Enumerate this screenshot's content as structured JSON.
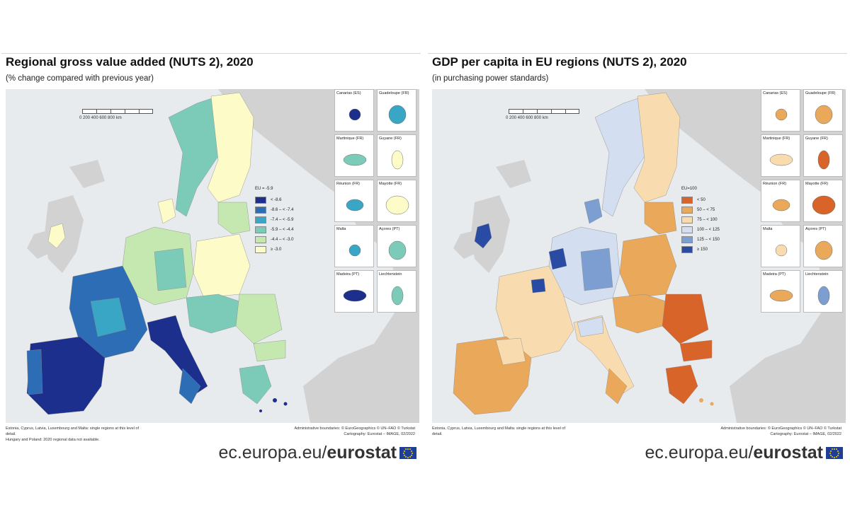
{
  "left": {
    "title": "Regional gross value added (NUTS 2), 2020",
    "subtitle": "(% change compared with previous year)",
    "legend": {
      "title": "EU = -5.9",
      "items": [
        {
          "label": "< -8.6",
          "color": "#1c2f8c"
        },
        {
          "label": "-8.6 – < -7.4",
          "color": "#2d6db5"
        },
        {
          "label": "-7.4 – < -5.9",
          "color": "#3aa6c6"
        },
        {
          "label": "-5.9 – < -4.4",
          "color": "#7ccbb9"
        },
        {
          "label": "-4.4 – < -3.0",
          "color": "#c5e8b1"
        },
        {
          "label": "≥ -3.0",
          "color": "#fdfcc8"
        }
      ]
    },
    "scale": "0   200   400   600   800 km",
    "insets": [
      "Canarias (ES)",
      "Guadeloupe (FR)",
      "Martinique (FR)",
      "Guyane (FR)",
      "Réunion (FR)",
      "Mayotte (FR)",
      "Malta",
      "Açores (PT)",
      "Madeira (PT)",
      "Liechtenstein"
    ],
    "footnote": "Estonia, Cyprus, Latvia, Luxembourg and Malta: single regions at this level of detail.\nHungary and Poland: 2020 regional data not available.",
    "credits": "Administrative boundaries: © EuroGeographics © UN–FAO © Turkstat\nCartography: Eurostat – IMAGE, 02/2022",
    "brand_plain": "ec.europa.eu/",
    "brand_bold": "eurostat"
  },
  "right": {
    "title": "GDP per capita in EU regions (NUTS 2), 2020",
    "subtitle": "(in purchasing power standards)",
    "legend": {
      "title": "EU=100",
      "items": [
        {
          "label": "< 50",
          "color": "#d9642a"
        },
        {
          "label": "50 – < 75",
          "color": "#e9a85a"
        },
        {
          "label": "75 – < 100",
          "color": "#f8dcb0"
        },
        {
          "label": "100 – < 125",
          "color": "#d3dff0"
        },
        {
          "label": "125 – < 150",
          "color": "#7d9ed0"
        },
        {
          "label": "≥ 150",
          "color": "#2a4ba3"
        }
      ]
    },
    "scale": "0   200   400   600   800 km",
    "insets": [
      "Canarias (ES)",
      "Guadeloupe (FR)",
      "Martinique (FR)",
      "Guyane (FR)",
      "Réunion (FR)",
      "Mayotte (FR)",
      "Malta",
      "Açores (PT)",
      "Madeira (PT)",
      "Liechtenstein"
    ],
    "footnote": "Estonia, Cyprus, Latvia, Luxembourg and Malta: single regions at this level of detail.",
    "credits": "Administrative boundaries: © EuroGeographics © UN–FAO © Turkstat\nCartography: Eurostat – IMAGE, 02/2022",
    "brand_plain": "ec.europa.eu/",
    "brand_bold": "eurostat"
  }
}
